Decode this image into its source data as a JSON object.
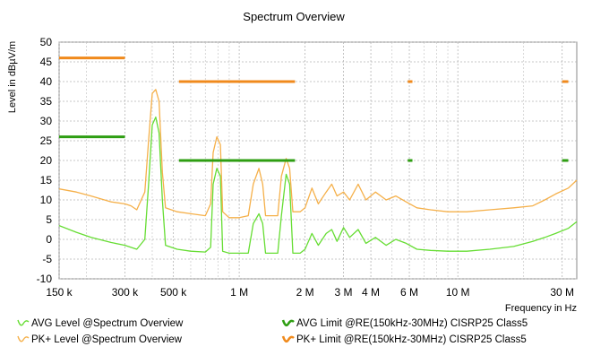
{
  "chart_data": {
    "type": "line",
    "title": "Spectrum Overview",
    "xlabel": "Frequency in Hz",
    "ylabel": "Level in dBµV/m",
    "xscale": "log",
    "xlim": [
      150000,
      35000000
    ],
    "ylim": [
      -10,
      50
    ],
    "grid": true,
    "legend_position": "bottom",
    "x_ticks": [
      {
        "value": 150000,
        "label": "150 k"
      },
      {
        "value": 300000,
        "label": "300 k"
      },
      {
        "value": 500000,
        "label": "500 k"
      },
      {
        "value": 1000000,
        "label": "1 M"
      },
      {
        "value": 2000000,
        "label": "2 M"
      },
      {
        "value": 3000000,
        "label": "3 M"
      },
      {
        "value": 4000000,
        "label": "4 M"
      },
      {
        "value": 6000000,
        "label": "6 M"
      },
      {
        "value": 10000000,
        "label": "10 M"
      },
      {
        "value": 30000000,
        "label": "30 M"
      }
    ],
    "x_minor_ticks": [
      200000,
      400000,
      600000,
      700000,
      800000,
      900000,
      5000000,
      7000000,
      8000000,
      9000000,
      20000000
    ],
    "y_ticks": [
      -10,
      -5,
      0,
      5,
      10,
      15,
      20,
      25,
      30,
      35,
      40,
      45,
      50
    ],
    "colors": {
      "avg_level": "#66dd33",
      "pk_level": "#f5b04a",
      "avg_limit": "#2e9e12",
      "pk_limit": "#f08a1c"
    },
    "series": [
      {
        "name": "AVG Level @Spectrum Overview",
        "kind": "trace",
        "color_key": "avg_level",
        "points": [
          [
            150000,
            3.5
          ],
          [
            180000,
            1.8
          ],
          [
            210000,
            0.5
          ],
          [
            260000,
            -0.8
          ],
          [
            300000,
            -1.5
          ],
          [
            340000,
            -2.5
          ],
          [
            370000,
            0
          ],
          [
            385000,
            14
          ],
          [
            400000,
            29
          ],
          [
            415000,
            31
          ],
          [
            430000,
            27
          ],
          [
            445000,
            10
          ],
          [
            460000,
            -1.5
          ],
          [
            520000,
            -2.5
          ],
          [
            600000,
            -3
          ],
          [
            700000,
            -3.2
          ],
          [
            740000,
            -2
          ],
          [
            760000,
            14
          ],
          [
            790000,
            18
          ],
          [
            820000,
            16
          ],
          [
            840000,
            -3
          ],
          [
            900000,
            -3.5
          ],
          [
            1000000,
            -3.5
          ],
          [
            1100000,
            -3.5
          ],
          [
            1160000,
            4
          ],
          [
            1230000,
            6.5
          ],
          [
            1280000,
            4
          ],
          [
            1320000,
            -3.5
          ],
          [
            1400000,
            -3.5
          ],
          [
            1500000,
            -3.5
          ],
          [
            1560000,
            6
          ],
          [
            1640000,
            16.5
          ],
          [
            1700000,
            14
          ],
          [
            1760000,
            -3.5
          ],
          [
            1900000,
            -3.5
          ],
          [
            2000000,
            -2.5
          ],
          [
            2150000,
            1.5
          ],
          [
            2300000,
            -1.5
          ],
          [
            2500000,
            1.5
          ],
          [
            2650000,
            2.5
          ],
          [
            2800000,
            -0.5
          ],
          [
            3000000,
            3
          ],
          [
            3200000,
            0.5
          ],
          [
            3500000,
            2.5
          ],
          [
            3800000,
            -1
          ],
          [
            4200000,
            0.5
          ],
          [
            4700000,
            -1.5
          ],
          [
            5200000,
            0
          ],
          [
            5800000,
            -1
          ],
          [
            6500000,
            -2.5
          ],
          [
            7500000,
            -2.8
          ],
          [
            9000000,
            -3
          ],
          [
            11000000,
            -3
          ],
          [
            14000000,
            -2.5
          ],
          [
            18000000,
            -1.8
          ],
          [
            22000000,
            -0.5
          ],
          [
            25000000,
            0.5
          ],
          [
            28000000,
            1.5
          ],
          [
            32000000,
            2.8
          ],
          [
            35000000,
            4.5
          ]
        ]
      },
      {
        "name": "PK+ Level @Spectrum Overview",
        "kind": "trace",
        "color_key": "pk_level",
        "points": [
          [
            150000,
            12.8
          ],
          [
            180000,
            12
          ],
          [
            210000,
            11
          ],
          [
            260000,
            9.5
          ],
          [
            300000,
            9
          ],
          [
            320000,
            8.5
          ],
          [
            340000,
            7.5
          ],
          [
            370000,
            12
          ],
          [
            385000,
            25
          ],
          [
            400000,
            37
          ],
          [
            415000,
            38
          ],
          [
            430000,
            35
          ],
          [
            445000,
            17
          ],
          [
            460000,
            8
          ],
          [
            520000,
            7
          ],
          [
            600000,
            6.5
          ],
          [
            700000,
            6
          ],
          [
            740000,
            9
          ],
          [
            760000,
            22
          ],
          [
            790000,
            26
          ],
          [
            820000,
            24
          ],
          [
            840000,
            7
          ],
          [
            900000,
            5.5
          ],
          [
            1000000,
            5.5
          ],
          [
            1100000,
            6
          ],
          [
            1160000,
            14
          ],
          [
            1230000,
            18
          ],
          [
            1280000,
            14
          ],
          [
            1320000,
            6
          ],
          [
            1400000,
            6
          ],
          [
            1500000,
            6
          ],
          [
            1560000,
            16
          ],
          [
            1640000,
            20.5
          ],
          [
            1700000,
            18
          ],
          [
            1760000,
            7
          ],
          [
            1900000,
            7
          ],
          [
            2000000,
            8
          ],
          [
            2150000,
            13
          ],
          [
            2300000,
            9
          ],
          [
            2500000,
            12
          ],
          [
            2650000,
            14
          ],
          [
            2800000,
            11
          ],
          [
            3000000,
            12
          ],
          [
            3200000,
            10
          ],
          [
            3500000,
            14
          ],
          [
            3800000,
            10
          ],
          [
            4200000,
            12
          ],
          [
            4700000,
            10
          ],
          [
            5200000,
            11
          ],
          [
            5800000,
            9.5
          ],
          [
            6500000,
            8
          ],
          [
            7500000,
            7.5
          ],
          [
            9000000,
            7
          ],
          [
            11000000,
            7
          ],
          [
            14000000,
            7.5
          ],
          [
            18000000,
            8
          ],
          [
            22000000,
            8.5
          ],
          [
            25000000,
            10
          ],
          [
            28000000,
            11.5
          ],
          [
            32000000,
            13
          ],
          [
            35000000,
            15
          ]
        ]
      },
      {
        "name": "AVG Limit @RE(150kHz-30MHz) CISRP25 Class5",
        "kind": "limit",
        "color_key": "avg_limit",
        "segments": [
          [
            [
              150000,
              26
            ],
            [
              300000,
              26
            ]
          ],
          [
            [
              530000,
              20
            ],
            [
              1800000,
              20
            ]
          ],
          [
            [
              5900000,
              20
            ],
            [
              6200000,
              20
            ]
          ],
          [
            [
              30000000,
              20
            ],
            [
              32000000,
              20
            ]
          ]
        ]
      },
      {
        "name": "PK+ Limit @RE(150kHz-30MHz) CISRP25 Class5",
        "kind": "limit",
        "color_key": "pk_limit",
        "segments": [
          [
            [
              150000,
              46
            ],
            [
              300000,
              46
            ]
          ],
          [
            [
              530000,
              40
            ],
            [
              1800000,
              40
            ]
          ],
          [
            [
              5900000,
              40
            ],
            [
              6200000,
              40
            ]
          ],
          [
            [
              30000000,
              40
            ],
            [
              32000000,
              40
            ]
          ]
        ]
      }
    ]
  }
}
